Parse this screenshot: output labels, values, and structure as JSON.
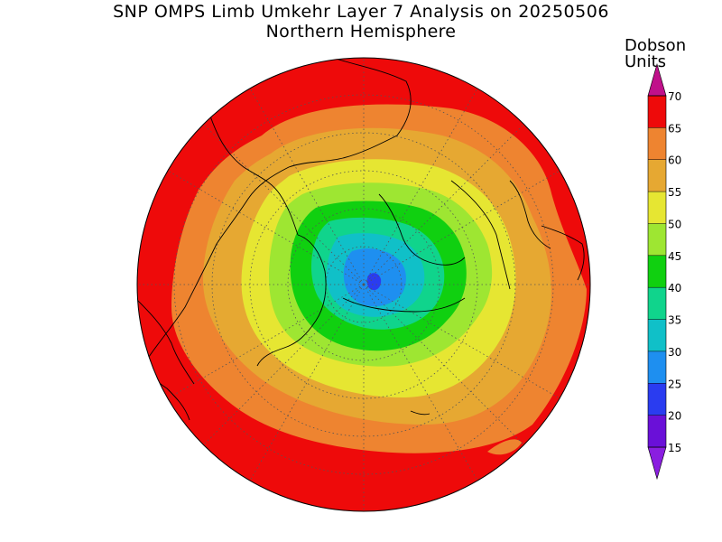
{
  "title": {
    "line1": "SNP OMPS Limb Umkehr Layer 7 Analysis on 20250506",
    "line2": "Northern Hemisphere"
  },
  "colorbar": {
    "units_line1": "Dobson",
    "units_line2": "Units",
    "ticks": [
      "15",
      "20",
      "25",
      "30",
      "35",
      "40",
      "45",
      "50",
      "55",
      "60",
      "65",
      "70"
    ],
    "bands": [
      {
        "min": 10,
        "max": 15,
        "color": "#8a1ee0"
      },
      {
        "min": 15,
        "max": 20,
        "color": "#6a10d8"
      },
      {
        "min": 20,
        "max": 25,
        "color": "#2a3cf0"
      },
      {
        "min": 25,
        "max": 30,
        "color": "#1e8ff0"
      },
      {
        "min": 30,
        "max": 35,
        "color": "#10c0c8"
      },
      {
        "min": 35,
        "max": 40,
        "color": "#10d48c"
      },
      {
        "min": 40,
        "max": 45,
        "color": "#10d010"
      },
      {
        "min": 45,
        "max": 50,
        "color": "#9ee632"
      },
      {
        "min": 50,
        "max": 55,
        "color": "#e6e632"
      },
      {
        "min": 55,
        "max": 60,
        "color": "#e6a832"
      },
      {
        "min": 60,
        "max": 65,
        "color": "#ee8430"
      },
      {
        "min": 65,
        "max": 70,
        "color": "#ee0a0a"
      },
      {
        "min": 70,
        "max": 75,
        "color": "#c0108a"
      }
    ]
  },
  "map": {
    "projection": "north polar stereographic",
    "field": "ozone layer 7 column",
    "center_min_value": 25,
    "edge_max_value": 70
  }
}
